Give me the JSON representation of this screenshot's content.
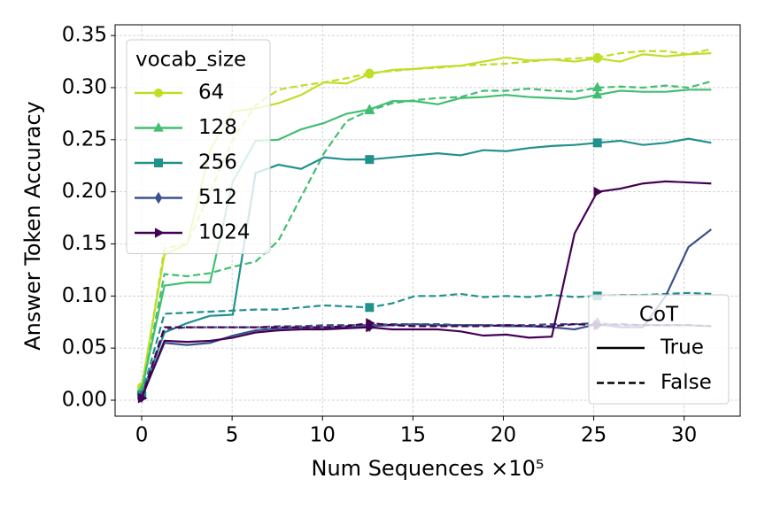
{
  "chart_data": {
    "type": "line",
    "xlabel": "Num Sequences ×10⁵",
    "ylabel": "Answer Token Accuracy",
    "x": [
      0,
      1.26,
      2.52,
      3.78,
      5.04,
      6.3,
      7.56,
      8.82,
      10.08,
      11.34,
      12.6,
      13.86,
      15.12,
      16.38,
      17.64,
      18.9,
      20.16,
      21.42,
      22.68,
      23.94,
      25.2,
      26.46,
      27.72,
      28.98,
      30.24,
      31.5
    ],
    "xlim": [
      -1.47,
      33.1
    ],
    "xticks": [
      0,
      5,
      10,
      15,
      20,
      25,
      30
    ],
    "ylim": [
      -0.0153,
      0.3603
    ],
    "yticks": [
      {
        "value": 0,
        "label": "0.00"
      },
      {
        "value": 0.05,
        "label": "0.05"
      },
      {
        "value": 0.1,
        "label": "0.10"
      },
      {
        "value": 0.15,
        "label": "0.15"
      },
      {
        "value": 0.2,
        "label": "0.20"
      },
      {
        "value": 0.25,
        "label": "0.25"
      },
      {
        "value": 0.3,
        "label": "0.30"
      },
      {
        "value": 0.35,
        "label": "0.35"
      }
    ],
    "grid": true,
    "legends": [
      {
        "title": "vocab_size",
        "loc": "upper left",
        "entries": [
          {
            "label": "64",
            "color": "#bddf26",
            "marker": "circle"
          },
          {
            "label": "128",
            "color": "#42be71",
            "marker": "triangle"
          },
          {
            "label": "256",
            "color": "#21918c",
            "marker": "square"
          },
          {
            "label": "512",
            "color": "#3b528b",
            "marker": "diamond"
          },
          {
            "label": "1024",
            "color": "#440154",
            "marker": "triangle-right"
          }
        ]
      },
      {
        "title": "CoT",
        "loc": "lower right",
        "entries": [
          {
            "label": "True",
            "dash": "solid"
          },
          {
            "label": "False",
            "dash": "dashed"
          }
        ]
      }
    ],
    "series": [
      {
        "vocab_size": "64",
        "CoT": "True",
        "color": "#bddf26",
        "marker": "circle",
        "dash": "solid",
        "values": [
          0.013,
          0.14,
          0.15,
          0.24,
          0.277,
          0.28,
          0.285,
          0.293,
          0.305,
          0.304,
          0.313,
          0.317,
          0.318,
          0.32,
          0.321,
          0.325,
          0.329,
          0.326,
          0.327,
          0.325,
          0.328,
          0.325,
          0.332,
          0.33,
          0.332,
          0.333
        ]
      },
      {
        "vocab_size": "64",
        "CoT": "False",
        "color": "#bddf26",
        "marker": "circle",
        "dash": "dashed",
        "values": [
          0.01,
          0.146,
          0.15,
          0.2,
          0.25,
          0.283,
          0.298,
          0.302,
          0.305,
          0.309,
          0.314,
          0.316,
          0.318,
          0.319,
          0.321,
          0.322,
          0.323,
          0.325,
          0.327,
          0.328,
          0.329,
          0.333,
          0.335,
          0.335,
          0.332,
          0.337
        ]
      },
      {
        "vocab_size": "128",
        "CoT": "True",
        "color": "#42be71",
        "marker": "triangle",
        "dash": "solid",
        "values": [
          0.01,
          0.11,
          0.113,
          0.113,
          0.21,
          0.249,
          0.25,
          0.26,
          0.266,
          0.275,
          0.279,
          0.287,
          0.287,
          0.284,
          0.29,
          0.291,
          0.293,
          0.291,
          0.29,
          0.289,
          0.293,
          0.297,
          0.296,
          0.296,
          0.298,
          0.298
        ]
      },
      {
        "vocab_size": "128",
        "CoT": "False",
        "color": "#42be71",
        "marker": "triangle",
        "dash": "dashed",
        "values": [
          0.008,
          0.121,
          0.119,
          0.122,
          0.128,
          0.133,
          0.153,
          0.195,
          0.237,
          0.268,
          0.278,
          0.285,
          0.288,
          0.29,
          0.291,
          0.297,
          0.297,
          0.299,
          0.297,
          0.296,
          0.3,
          0.301,
          0.3,
          0.302,
          0.3,
          0.306
        ]
      },
      {
        "vocab_size": "256",
        "CoT": "True",
        "color": "#21918c",
        "marker": "square",
        "dash": "solid",
        "values": [
          0.005,
          0.065,
          0.074,
          0.081,
          0.082,
          0.218,
          0.226,
          0.222,
          0.233,
          0.231,
          0.231,
          0.233,
          0.235,
          0.237,
          0.235,
          0.24,
          0.239,
          0.242,
          0.244,
          0.245,
          0.247,
          0.249,
          0.245,
          0.247,
          0.251,
          0.247
        ]
      },
      {
        "vocab_size": "256",
        "CoT": "False",
        "color": "#21918c",
        "marker": "square",
        "dash": "dashed",
        "values": [
          0.005,
          0.083,
          0.084,
          0.085,
          0.086,
          0.087,
          0.087,
          0.089,
          0.091,
          0.09,
          0.089,
          0.093,
          0.1,
          0.1,
          0.102,
          0.099,
          0.1,
          0.099,
          0.101,
          0.099,
          0.1,
          0.101,
          0.101,
          0.102,
          0.103,
          0.102
        ]
      },
      {
        "vocab_size": "512",
        "CoT": "True",
        "color": "#3b528b",
        "marker": "diamond",
        "dash": "solid",
        "values": [
          0.003,
          0.055,
          0.053,
          0.055,
          0.062,
          0.067,
          0.069,
          0.07,
          0.07,
          0.07,
          0.071,
          0.072,
          0.073,
          0.072,
          0.072,
          0.072,
          0.071,
          0.071,
          0.07,
          0.068,
          0.073,
          0.07,
          0.07,
          0.1,
          0.147,
          0.164
        ]
      },
      {
        "vocab_size": "512",
        "CoT": "False",
        "color": "#3b528b",
        "marker": "diamond",
        "dash": "dashed",
        "values": [
          0.003,
          0.068,
          0.07,
          0.07,
          0.07,
          0.07,
          0.071,
          0.071,
          0.072,
          0.072,
          0.072,
          0.073,
          0.073,
          0.073,
          0.072,
          0.072,
          0.072,
          0.072,
          0.073,
          0.073,
          0.074,
          0.072,
          0.072,
          0.072,
          0.072,
          0.071
        ]
      },
      {
        "vocab_size": "1024",
        "CoT": "True",
        "color": "#440154",
        "marker": "triangle-right",
        "dash": "solid",
        "values": [
          0.002,
          0.057,
          0.056,
          0.057,
          0.06,
          0.065,
          0.067,
          0.068,
          0.068,
          0.069,
          0.07,
          0.068,
          0.068,
          0.068,
          0.066,
          0.062,
          0.063,
          0.06,
          0.061,
          0.16,
          0.2,
          0.203,
          0.208,
          0.21,
          0.209,
          0.208
        ]
      },
      {
        "vocab_size": "1024",
        "CoT": "False",
        "color": "#440154",
        "marker": "triangle-right",
        "dash": "dashed",
        "values": [
          0.002,
          0.07,
          0.07,
          0.07,
          0.07,
          0.07,
          0.07,
          0.07,
          0.07,
          0.071,
          0.074,
          0.072,
          0.071,
          0.071,
          0.071,
          0.071,
          0.072,
          0.071,
          0.071,
          0.073,
          0.072,
          0.073,
          0.072,
          0.072,
          0.072,
          0.071
        ]
      }
    ]
  }
}
